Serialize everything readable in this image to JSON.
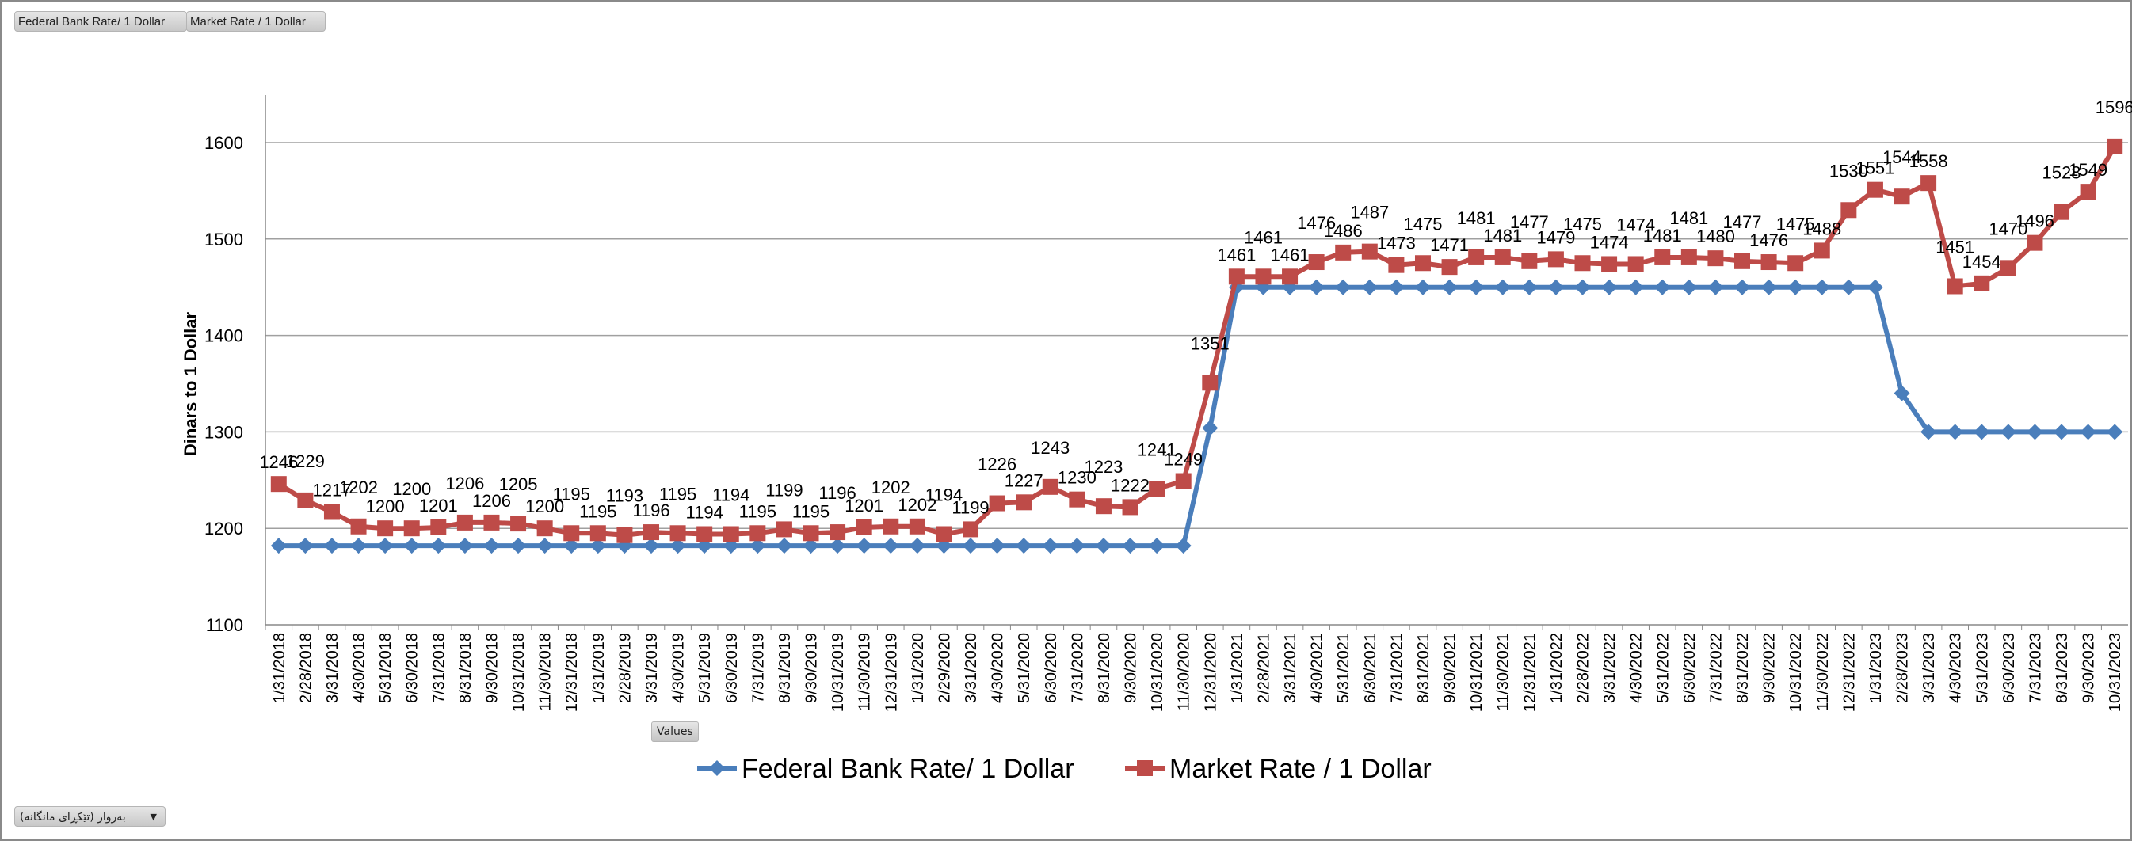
{
  "filter_buttons": [
    "Federal Bank Rate/ 1 Dollar",
    "Market Rate / 1 Dollar"
  ],
  "values_button": "Values",
  "date_dropdown": {
    "selected": "بەروار (تێکڕای مانگانە)",
    "icon": "caret-down-icon"
  },
  "chart_data": {
    "type": "line",
    "title": "",
    "xlabel": "",
    "ylabel": "Dinars to 1 Dollar",
    "ylim": [
      1100,
      1650
    ],
    "yticks": [
      1100,
      1200,
      1300,
      1400,
      1500,
      1600
    ],
    "grid": true,
    "legend": "bottom",
    "categories": [
      "1/31/2018",
      "2/28/2018",
      "3/31/2018",
      "4/30/2018",
      "5/31/2018",
      "6/30/2018",
      "7/31/2018",
      "8/31/2018",
      "9/30/2018",
      "10/31/2018",
      "11/30/2018",
      "12/31/2018",
      "1/31/2019",
      "2/28/2019",
      "3/31/2019",
      "4/30/2019",
      "5/31/2019",
      "6/30/2019",
      "7/31/2019",
      "8/31/2019",
      "9/30/2019",
      "10/31/2019",
      "11/30/2019",
      "12/31/2019",
      "1/31/2020",
      "2/29/2020",
      "3/31/2020",
      "4/30/2020",
      "5/31/2020",
      "6/30/2020",
      "7/31/2020",
      "8/31/2020",
      "9/30/2020",
      "10/31/2020",
      "11/30/2020",
      "12/31/2020",
      "1/31/2021",
      "2/28/2021",
      "3/31/2021",
      "4/30/2021",
      "5/31/2021",
      "6/30/2021",
      "7/31/2021",
      "8/31/2021",
      "9/30/2021",
      "10/31/2021",
      "11/30/2021",
      "12/31/2021",
      "1/31/2022",
      "2/28/2022",
      "3/31/2022",
      "4/30/2022",
      "5/31/2022",
      "6/30/2022",
      "7/31/2022",
      "8/31/2022",
      "9/30/2022",
      "10/31/2022",
      "11/30/2022",
      "12/31/2022",
      "1/31/2023",
      "2/28/2023",
      "3/31/2023",
      "4/30/2023",
      "5/31/2023",
      "6/30/2023",
      "7/31/2023",
      "8/31/2023",
      "9/30/2023",
      "10/31/2023"
    ],
    "series": [
      {
        "name": "Federal Bank Rate/ 1 Dollar",
        "color": "#4a7ebb",
        "marker": "diamond",
        "data_labels": false,
        "values": [
          1182,
          1182,
          1182,
          1182,
          1182,
          1182,
          1182,
          1182,
          1182,
          1182,
          1182,
          1182,
          1182,
          1182,
          1182,
          1182,
          1182,
          1182,
          1182,
          1182,
          1182,
          1182,
          1182,
          1182,
          1182,
          1182,
          1182,
          1182,
          1182,
          1182,
          1182,
          1182,
          1182,
          1182,
          1182,
          1304,
          1450,
          1450,
          1450,
          1450,
          1450,
          1450,
          1450,
          1450,
          1450,
          1450,
          1450,
          1450,
          1450,
          1450,
          1450,
          1450,
          1450,
          1450,
          1450,
          1450,
          1450,
          1450,
          1450,
          1450,
          1450,
          1340,
          1300,
          1300,
          1300,
          1300,
          1300,
          1300,
          1300,
          1300
        ]
      },
      {
        "name": "Market Rate / 1 Dollar",
        "color": "#be4b48",
        "marker": "square",
        "data_labels": true,
        "values": [
          1246,
          1229,
          1217,
          1202,
          1200,
          1200,
          1201,
          1206,
          1206,
          1205,
          1200,
          1195,
          1195,
          1193,
          1196,
          1195,
          1194,
          1194,
          1195,
          1199,
          1195,
          1196,
          1201,
          1202,
          1202,
          1194,
          1199,
          1226,
          1227,
          1243,
          1230,
          1223,
          1222,
          1241,
          1249,
          1351,
          1461,
          1461,
          1461,
          1476,
          1486,
          1487,
          1473,
          1475,
          1471,
          1481,
          1481,
          1477,
          1479,
          1475,
          1474,
          1474,
          1481,
          1481,
          1480,
          1477,
          1476,
          1475,
          1488,
          1530,
          1551,
          1544,
          1558,
          1451,
          1454,
          1470,
          1496,
          1528,
          1549,
          1596
        ]
      }
    ]
  }
}
